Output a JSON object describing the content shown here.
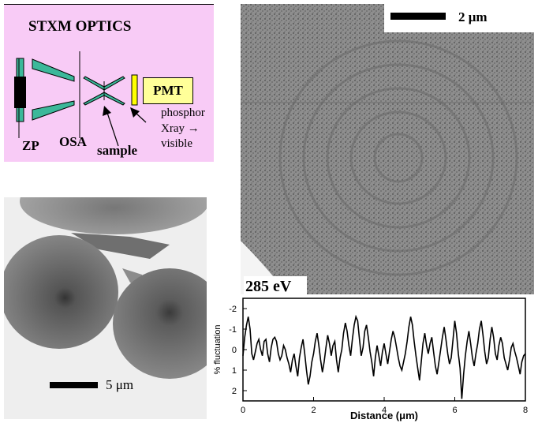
{
  "optics": {
    "title": "STXM OPTICS",
    "zp": "ZP",
    "osa": "OSA",
    "sample": "sample",
    "pmt": "PMT",
    "phosphor": "phosphor",
    "xray": "Xray →",
    "visible": "visible"
  },
  "micrograph_left": {
    "scale_label": "5 μm"
  },
  "micrograph_right": {
    "scale_label": "2 μm"
  },
  "energy_label": "285 eV",
  "chart_data": {
    "type": "line",
    "xlabel": "Distance (μm)",
    "ylabel": "% fluctuation",
    "xlim": [
      0,
      8
    ],
    "ylim": [
      2.5,
      -2.5
    ],
    "xticks": [
      0,
      2,
      4,
      6,
      8
    ],
    "yticks": [
      -2,
      -1,
      0,
      1,
      2
    ],
    "yticklabels": [
      "-2",
      "-1",
      "0",
      "1",
      "2"
    ],
    "series": [
      {
        "x": [
          0,
          0.05,
          0.1,
          0.15,
          0.2,
          0.25,
          0.3,
          0.35,
          0.4,
          0.45,
          0.5,
          0.55,
          0.6,
          0.65,
          0.7,
          0.75,
          0.8,
          0.85,
          0.9,
          0.95,
          1.0,
          1.05,
          1.1,
          1.15,
          1.2,
          1.25,
          1.3,
          1.35,
          1.4,
          1.45,
          1.5,
          1.55,
          1.6,
          1.65,
          1.7,
          1.75,
          1.8,
          1.85,
          1.9,
          1.95,
          2.0,
          2.05,
          2.1,
          2.15,
          2.2,
          2.25,
          2.3,
          2.35,
          2.4,
          2.45,
          2.5,
          2.55,
          2.6,
          2.65,
          2.7,
          2.75,
          2.8,
          2.85,
          2.9,
          2.95,
          3.0,
          3.05,
          3.1,
          3.15,
          3.2,
          3.25,
          3.3,
          3.35,
          3.4,
          3.45,
          3.5,
          3.55,
          3.6,
          3.65,
          3.7,
          3.75,
          3.8,
          3.85,
          3.9,
          3.95,
          4.0,
          4.05,
          4.1,
          4.15,
          4.2,
          4.25,
          4.3,
          4.35,
          4.4,
          4.45,
          4.5,
          4.55,
          4.6,
          4.65,
          4.7,
          4.75,
          4.8,
          4.85,
          4.9,
          4.95,
          5.0,
          5.05,
          5.1,
          5.15,
          5.2,
          5.25,
          5.3,
          5.35,
          5.4,
          5.45,
          5.5,
          5.55,
          5.6,
          5.65,
          5.7,
          5.75,
          5.8,
          5.85,
          5.9,
          5.95,
          6.0,
          6.05,
          6.1,
          6.15,
          6.2,
          6.25,
          6.3,
          6.35,
          6.4,
          6.45,
          6.5,
          6.55,
          6.6,
          6.65,
          6.7,
          6.75,
          6.8,
          6.85,
          6.9,
          6.95,
          7.0,
          7.05,
          7.1,
          7.15,
          7.2,
          7.25,
          7.3,
          7.35,
          7.4,
          7.45,
          7.5,
          7.55,
          7.6,
          7.65,
          7.7,
          7.75,
          7.8,
          7.85,
          7.9,
          7.95,
          8.0
        ],
        "y": [
          0.3,
          -0.6,
          -1.2,
          -1.6,
          -1.0,
          0.2,
          0.5,
          0.1,
          -0.3,
          -0.5,
          0.0,
          0.3,
          -0.4,
          -0.5,
          0.2,
          0.6,
          -0.1,
          -0.5,
          -0.6,
          -0.4,
          0.2,
          0.5,
          0.3,
          -0.2,
          0.0,
          0.4,
          0.7,
          1.1,
          0.5,
          0.2,
          0.8,
          1.3,
          0.4,
          -0.1,
          -0.5,
          0.2,
          1.0,
          1.7,
          1.3,
          0.6,
          0.2,
          -0.4,
          -0.8,
          -0.2,
          0.5,
          1.1,
          0.6,
          -0.1,
          -0.7,
          -0.3,
          0.3,
          -0.2,
          -0.4,
          0.5,
          1.1,
          0.4,
          0.0,
          -0.8,
          -1.3,
          -0.9,
          -0.2,
          0.3,
          -0.5,
          -1.2,
          -1.6,
          -1.4,
          -0.5,
          0.3,
          -0.1,
          -0.9,
          -1.2,
          -0.6,
          0.1,
          0.6,
          1.3,
          0.4,
          -0.2,
          0.3,
          0.8,
          0.1,
          -0.3,
          0.2,
          0.7,
          0.1,
          -0.5,
          -0.9,
          -0.6,
          -0.1,
          0.4,
          0.8,
          1.0,
          0.6,
          0.2,
          -0.4,
          -1.1,
          -1.6,
          -1.2,
          -0.4,
          0.3,
          0.9,
          1.5,
          0.6,
          -0.3,
          -0.8,
          -0.2,
          0.2,
          -0.3,
          -0.6,
          0.1,
          0.8,
          1.2,
          0.6,
          0.0,
          -0.6,
          -1.1,
          -0.5,
          0.2,
          0.7,
          0.4,
          -0.5,
          -1.4,
          -0.8,
          0.2,
          0.9,
          2.4,
          1.2,
          0.3,
          -0.4,
          -0.9,
          -0.3,
          0.4,
          0.8,
          0.2,
          -0.3,
          -1.0,
          -1.4,
          -0.7,
          0.1,
          0.7,
          0.4,
          -0.5,
          -1.1,
          -0.6,
          0.2,
          0.5,
          -0.2,
          -0.6,
          -0.3,
          0.4,
          0.7,
          1.0,
          0.5,
          -0.1,
          -0.3,
          0.1,
          0.4,
          0.8,
          1.2,
          0.6,
          0.3,
          0.2
        ]
      }
    ]
  }
}
